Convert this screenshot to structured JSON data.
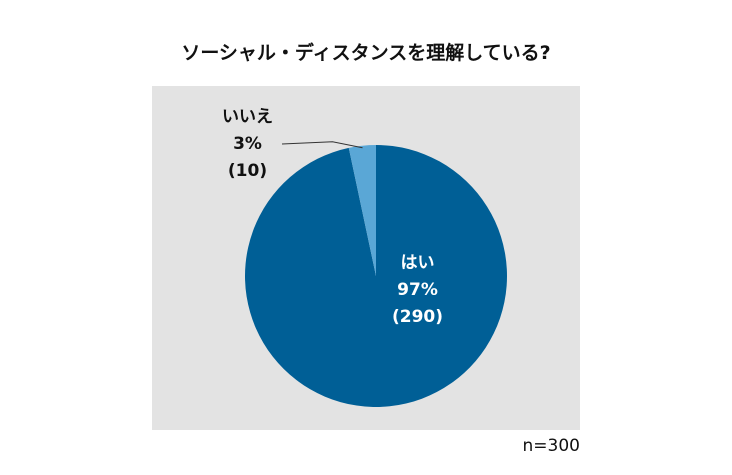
{
  "chart_data": {
    "type": "pie",
    "title": "ソーシャル・ディスタンスを理解している?",
    "note": "n=300",
    "slices": [
      {
        "label": "はい",
        "percent": "97%",
        "count": "(290)",
        "value": 290,
        "color": "#005f96"
      },
      {
        "label": "いいえ",
        "percent": "3%",
        "count": "(10)",
        "value": 10,
        "color": "#5aa7d6"
      }
    ]
  },
  "colors": {
    "background": "#e3e3e3",
    "leader_line": "#333333"
  }
}
